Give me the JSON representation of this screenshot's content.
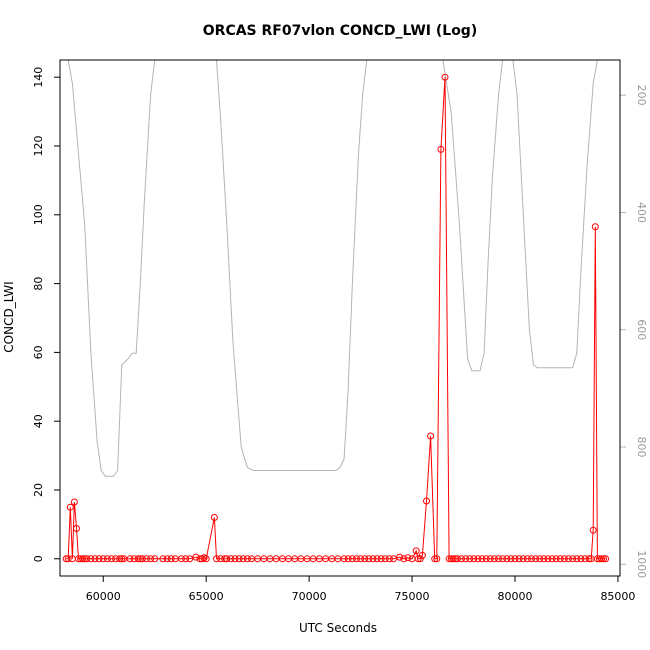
{
  "chart_data": {
    "type": "scatter",
    "title": "ORCAS RF07vlon CONCD_LWI (Log)",
    "xlabel": "UTC Seconds",
    "ylabel": "CONCD_LWI",
    "xlim": [
      57900,
      85100
    ],
    "ylim": [
      -5,
      145
    ],
    "x_ticks": [
      60000,
      65000,
      70000,
      75000,
      80000,
      85000
    ],
    "y_ticks": [
      0,
      20,
      40,
      60,
      80,
      100,
      120,
      140
    ],
    "y2lim": [
      1020,
      140
    ],
    "y2_ticks": [
      200,
      400,
      600,
      800,
      1000
    ],
    "colors": {
      "series": "#ff0000",
      "secondary": "#b4b4b4"
    },
    "series": [
      {
        "role": "primary",
        "points": [
          [
            58200,
            0
          ],
          [
            58300,
            0
          ],
          [
            58400,
            15
          ],
          [
            58500,
            0
          ],
          [
            58600,
            16.5
          ],
          [
            58700,
            8.8
          ],
          [
            58800,
            0
          ],
          [
            58900,
            0
          ],
          [
            59000,
            0
          ],
          [
            59100,
            0
          ],
          [
            59200,
            0
          ],
          [
            59400,
            0
          ],
          [
            59600,
            0
          ],
          [
            59800,
            0
          ],
          [
            60000,
            0
          ],
          [
            60200,
            0
          ],
          [
            60400,
            0
          ],
          [
            60600,
            0
          ],
          [
            60800,
            0
          ],
          [
            60900,
            0
          ],
          [
            61000,
            0
          ],
          [
            61300,
            0
          ],
          [
            61500,
            0
          ],
          [
            61700,
            0
          ],
          [
            61800,
            0
          ],
          [
            61900,
            0
          ],
          [
            62100,
            0
          ],
          [
            62300,
            0
          ],
          [
            62500,
            0
          ],
          [
            62900,
            0
          ],
          [
            63100,
            0
          ],
          [
            63300,
            0
          ],
          [
            63500,
            0
          ],
          [
            63800,
            0
          ],
          [
            64000,
            0
          ],
          [
            64200,
            0
          ],
          [
            64500,
            0.5
          ],
          [
            64700,
            0
          ],
          [
            64800,
            0
          ],
          [
            64900,
            0.3
          ],
          [
            65000,
            0
          ],
          [
            65400,
            12
          ],
          [
            65500,
            0
          ],
          [
            65700,
            0
          ],
          [
            65900,
            0
          ],
          [
            66000,
            0
          ],
          [
            66200,
            0
          ],
          [
            66400,
            0
          ],
          [
            66600,
            0
          ],
          [
            66800,
            0
          ],
          [
            67000,
            0
          ],
          [
            67200,
            0
          ],
          [
            67500,
            0
          ],
          [
            67800,
            0
          ],
          [
            68100,
            0
          ],
          [
            68400,
            0
          ],
          [
            68700,
            0
          ],
          [
            69000,
            0
          ],
          [
            69300,
            0
          ],
          [
            69600,
            0
          ],
          [
            69900,
            0
          ],
          [
            70200,
            0
          ],
          [
            70500,
            0
          ],
          [
            70800,
            0
          ],
          [
            71100,
            0
          ],
          [
            71400,
            0
          ],
          [
            71700,
            0
          ],
          [
            71900,
            0
          ],
          [
            72100,
            0
          ],
          [
            72300,
            0
          ],
          [
            72500,
            0
          ],
          [
            72700,
            0
          ],
          [
            72900,
            0
          ],
          [
            73100,
            0
          ],
          [
            73300,
            0
          ],
          [
            73500,
            0
          ],
          [
            73700,
            0
          ],
          [
            73900,
            0
          ],
          [
            74100,
            0
          ],
          [
            74400,
            0.5
          ],
          [
            74600,
            0
          ],
          [
            74800,
            0.3
          ],
          [
            75000,
            0
          ],
          [
            75200,
            2.3
          ],
          [
            75300,
            0
          ],
          [
            75400,
            0
          ],
          [
            75500,
            1
          ],
          [
            75700,
            16.8
          ],
          [
            75900,
            35.7
          ],
          [
            76100,
            0
          ],
          [
            76200,
            0
          ],
          [
            76400,
            119
          ],
          [
            76600,
            140
          ],
          [
            76800,
            0
          ],
          [
            76900,
            0
          ],
          [
            77000,
            0
          ],
          [
            77100,
            0
          ],
          [
            77200,
            0
          ],
          [
            77400,
            0
          ],
          [
            77600,
            0
          ],
          [
            77800,
            0
          ],
          [
            78000,
            0
          ],
          [
            78200,
            0
          ],
          [
            78400,
            0
          ],
          [
            78600,
            0
          ],
          [
            78800,
            0
          ],
          [
            79000,
            0
          ],
          [
            79200,
            0
          ],
          [
            79400,
            0
          ],
          [
            79600,
            0
          ],
          [
            79800,
            0
          ],
          [
            80000,
            0
          ],
          [
            80200,
            0
          ],
          [
            80400,
            0
          ],
          [
            80600,
            0
          ],
          [
            80800,
            0
          ],
          [
            81000,
            0
          ],
          [
            81200,
            0
          ],
          [
            81400,
            0
          ],
          [
            81600,
            0
          ],
          [
            81800,
            0
          ],
          [
            82000,
            0
          ],
          [
            82200,
            0
          ],
          [
            82400,
            0
          ],
          [
            82600,
            0
          ],
          [
            82800,
            0
          ],
          [
            83000,
            0
          ],
          [
            83200,
            0
          ],
          [
            83400,
            0
          ],
          [
            83600,
            0
          ],
          [
            83700,
            0
          ],
          [
            83800,
            8.3
          ],
          [
            83900,
            96.5
          ],
          [
            84000,
            0
          ],
          [
            84100,
            0
          ],
          [
            84200,
            0
          ],
          [
            84300,
            0
          ],
          [
            84400,
            0
          ]
        ]
      },
      {
        "role": "secondary",
        "points": [
          [
            58300,
            140
          ],
          [
            58500,
            180
          ],
          [
            58800,
            300
          ],
          [
            59100,
            420
          ],
          [
            59400,
            640
          ],
          [
            59700,
            790
          ],
          [
            59900,
            840
          ],
          [
            60100,
            850
          ],
          [
            60500,
            850
          ],
          [
            60700,
            840
          ],
          [
            60900,
            660
          ],
          [
            61200,
            650
          ],
          [
            61400,
            640
          ],
          [
            61600,
            640
          ],
          [
            61800,
            520
          ],
          [
            62000,
            380
          ],
          [
            62300,
            200
          ],
          [
            62500,
            140
          ],
          [
            65500,
            140
          ],
          [
            65700,
            240
          ],
          [
            66000,
            420
          ],
          [
            66300,
            620
          ],
          [
            66700,
            800
          ],
          [
            67000,
            835
          ],
          [
            67300,
            840
          ],
          [
            71300,
            840
          ],
          [
            71500,
            835
          ],
          [
            71700,
            820
          ],
          [
            71900,
            700
          ],
          [
            72100,
            520
          ],
          [
            72400,
            300
          ],
          [
            72600,
            200
          ],
          [
            72800,
            140
          ],
          [
            76500,
            140
          ],
          [
            76900,
            230
          ],
          [
            77300,
            420
          ],
          [
            77700,
            650
          ],
          [
            77900,
            670
          ],
          [
            78300,
            670
          ],
          [
            78500,
            640
          ],
          [
            78700,
            480
          ],
          [
            78900,
            340
          ],
          [
            79200,
            200
          ],
          [
            79400,
            140
          ],
          [
            79900,
            140
          ],
          [
            80100,
            200
          ],
          [
            80400,
            400
          ],
          [
            80700,
            600
          ],
          [
            80900,
            660
          ],
          [
            81100,
            665
          ],
          [
            82800,
            665
          ],
          [
            83000,
            640
          ],
          [
            83200,
            500
          ],
          [
            83500,
            320
          ],
          [
            83800,
            180
          ],
          [
            84000,
            140
          ]
        ]
      }
    ]
  }
}
